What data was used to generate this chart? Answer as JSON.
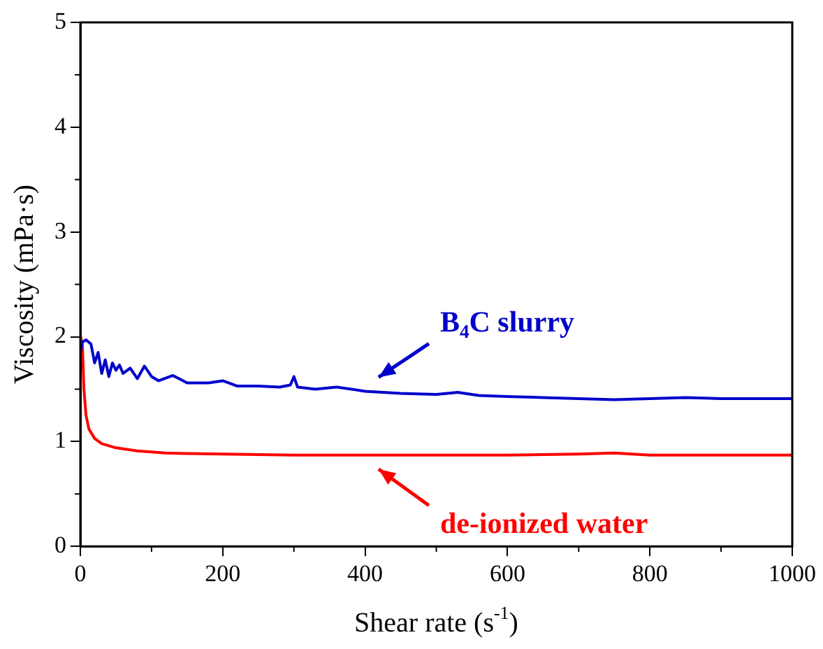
{
  "chart_data": {
    "type": "line",
    "xlabel": "Shear rate (s$^{-1}$)",
    "ylabel": "Viscosity (mPa·s)",
    "xlim": [
      0,
      1000
    ],
    "xticks": [
      0,
      200,
      400,
      600,
      800,
      1000
    ],
    "ylim": [
      0,
      5
    ],
    "yticks": [
      0,
      1,
      2,
      3,
      4,
      5
    ],
    "grid": false,
    "legend": false,
    "marker": "none",
    "line_style": "solid",
    "series": [
      {
        "color": "#0000cc",
        "x": [
          0,
          3,
          8,
          15,
          20,
          25,
          30,
          35,
          40,
          45,
          50,
          55,
          60,
          70,
          80,
          90,
          100,
          110,
          130,
          150,
          180,
          200,
          220,
          250,
          280,
          295,
          300,
          305,
          330,
          360,
          400,
          450,
          500,
          530,
          560,
          600,
          650,
          700,
          750,
          800,
          850,
          900,
          950,
          1000
        ],
        "values": [
          1.85,
          1.95,
          1.97,
          1.93,
          1.75,
          1.85,
          1.65,
          1.78,
          1.62,
          1.75,
          1.68,
          1.73,
          1.65,
          1.7,
          1.6,
          1.72,
          1.62,
          1.58,
          1.63,
          1.56,
          1.56,
          1.58,
          1.53,
          1.53,
          1.52,
          1.54,
          1.62,
          1.52,
          1.5,
          1.52,
          1.48,
          1.46,
          1.45,
          1.47,
          1.44,
          1.43,
          1.42,
          1.41,
          1.4,
          1.41,
          1.42,
          1.41,
          1.41,
          1.41
        ]
      },
      {
        "color": "#ff0000",
        "x": [
          0,
          3,
          5,
          8,
          12,
          20,
          30,
          50,
          80,
          120,
          200,
          300,
          400,
          500,
          600,
          700,
          750,
          800,
          900,
          1000
        ],
        "values": [
          2.02,
          1.9,
          1.5,
          1.25,
          1.12,
          1.03,
          0.98,
          0.94,
          0.91,
          0.89,
          0.88,
          0.87,
          0.87,
          0.87,
          0.87,
          0.88,
          0.89,
          0.87,
          0.87,
          0.87
        ]
      }
    ],
    "annotations": [
      {
        "text": "B$_{4}$C slurry",
        "x": 415,
        "y": 1.48
      },
      {
        "text": "de-ionized water",
        "x": 415,
        "y": 0.87
      }
    ]
  }
}
